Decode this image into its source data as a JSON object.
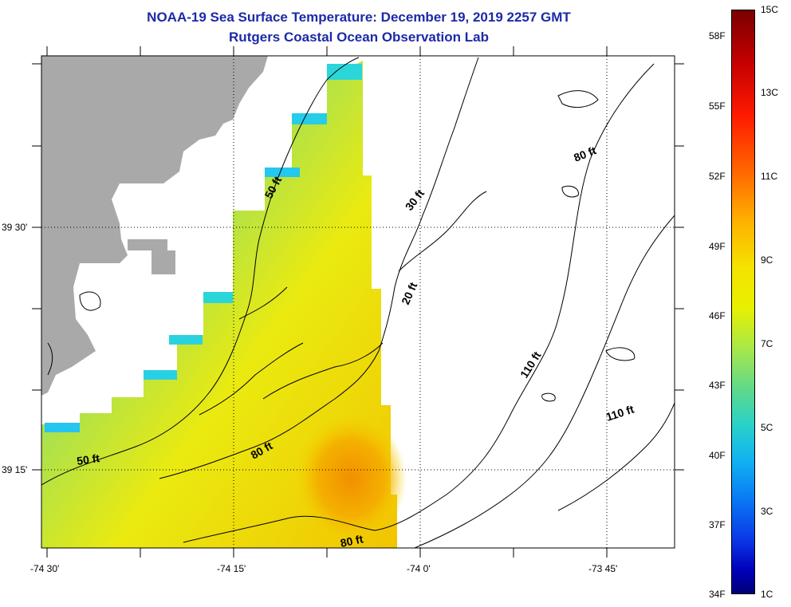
{
  "title": {
    "line1": "NOAA-19 Sea Surface Temperature:  December 19, 2019 2257 GMT",
    "line2": "Rutgers Coastal Ocean Observation Lab"
  },
  "axes": {
    "x_labels": [
      "-74 30'",
      "-74 15'",
      "-74 0'",
      "-73 45'"
    ],
    "y_labels": [
      "39 30'",
      "39 15'"
    ]
  },
  "colorbar": {
    "fahrenheit": [
      "58F",
      "55F",
      "52F",
      "49F",
      "46F",
      "43F",
      "40F",
      "37F",
      "34F"
    ],
    "celsius": [
      "15C",
      "13C",
      "11C",
      "9C",
      "7C",
      "5C",
      "3C",
      "1C"
    ]
  },
  "contour_labels": [
    "50 ft",
    "30 ft",
    "80 ft",
    "20 ft",
    "110 ft",
    "110 ft",
    "50 ft",
    "80 ft",
    "80 ft"
  ],
  "colors": {
    "land": "#a9a9a9",
    "title": "#1c2aa8",
    "contour": "#000000"
  }
}
